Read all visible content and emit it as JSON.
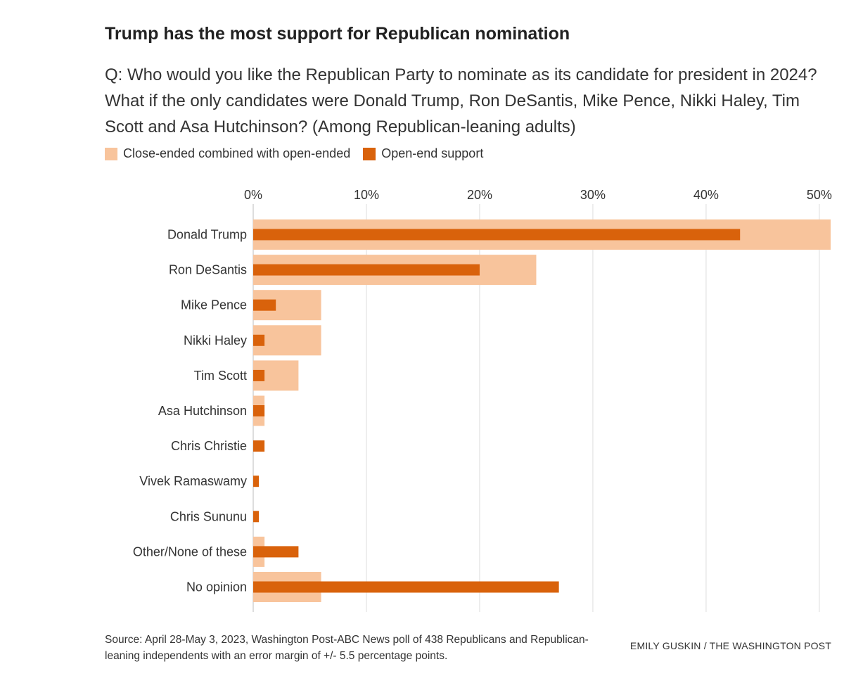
{
  "title": "Trump has the most support for Republican nomination",
  "subtitle": "Q: Who would you like the Republican Party to nominate as its candidate for president in 2024? What if the only candidates were Donald Trump, Ron DeSantis, Mike Pence, Nikki Haley, Tim Scott and Asa Hutchinson? (Among Republican-leaning adults)",
  "legend": {
    "combined_label": "Close-ended combined with open-ended",
    "open_label": "Open-end support"
  },
  "colors": {
    "combined": "#f8c49c",
    "open": "#d9620b",
    "grid": "#dddddd",
    "text": "#333333"
  },
  "source": "Source: April 28-May 3, 2023, Washington Post-ABC News poll of 438 Republicans and Republican-leaning independents with an error margin of +/- 5.5 percentage points.",
  "credit": "EMILY GUSKIN / THE WASHINGTON POST",
  "chart_data": {
    "type": "bar",
    "orientation": "horizontal",
    "categories": [
      "Donald Trump",
      "Ron DeSantis",
      "Mike Pence",
      "Nikki Haley",
      "Tim Scott",
      "Asa Hutchinson",
      "Chris Christie",
      "Vivek Ramaswamy",
      "Chris Sununu",
      "Other/None of these",
      "No opinion"
    ],
    "series": [
      {
        "name": "Close-ended combined with open-ended",
        "values": [
          51,
          25,
          6,
          6,
          4,
          1,
          0,
          0,
          0,
          1,
          6
        ]
      },
      {
        "name": "Open-end support",
        "values": [
          43,
          20,
          2,
          1,
          1,
          1,
          1,
          0.5,
          0.5,
          4,
          27
        ]
      }
    ],
    "x_ticks": [
      "0%",
      "10%",
      "20%",
      "30%",
      "40%",
      "50%"
    ],
    "x_tick_values": [
      0,
      10,
      20,
      30,
      40,
      50
    ],
    "xlim": [
      0,
      51
    ],
    "grid": true,
    "legend_position": "top-left"
  }
}
